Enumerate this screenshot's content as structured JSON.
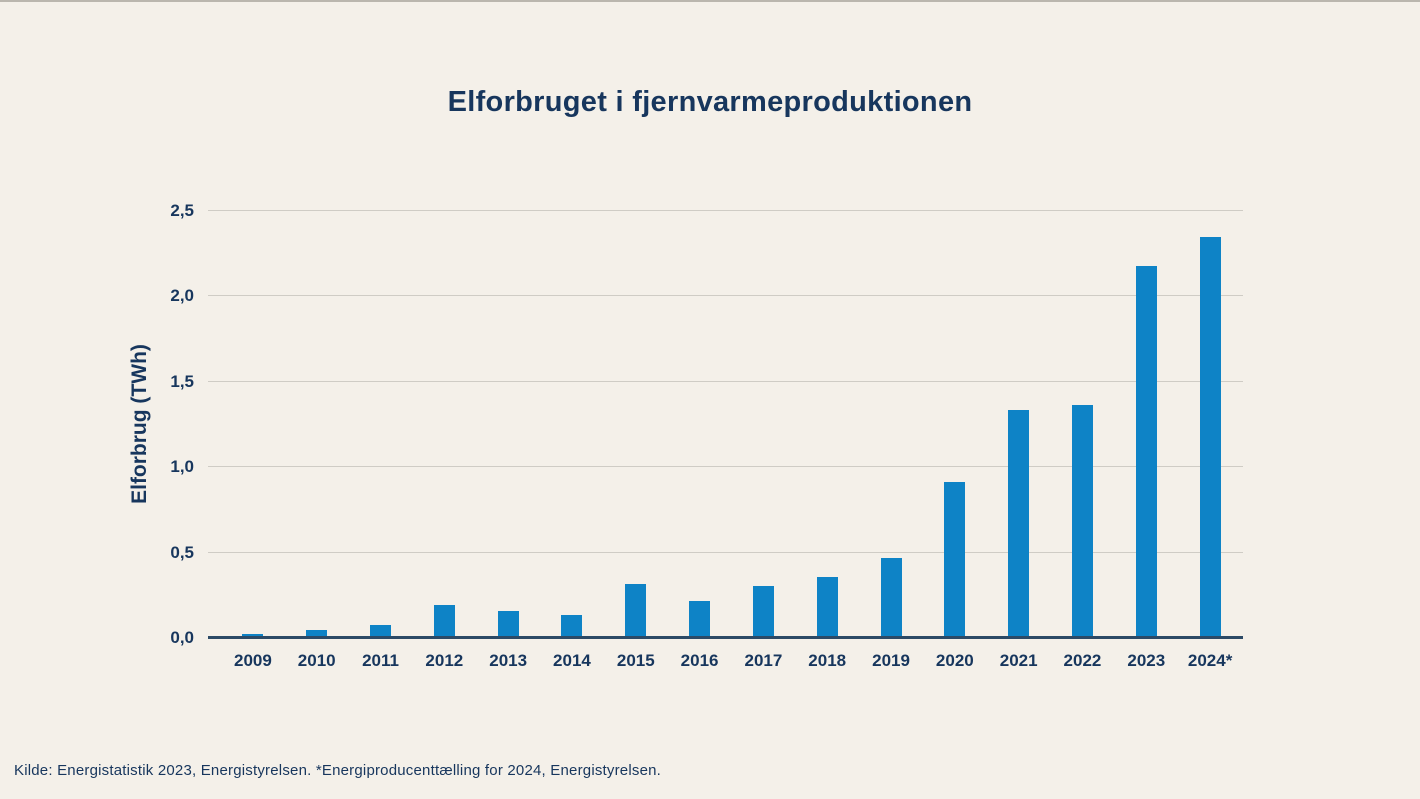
{
  "page": {
    "background_color": "#f4f0e9",
    "text_color": "#17365d",
    "bar_color": "#0e83c6",
    "gridline_color": "#cfccc5",
    "axis_line_color": "#2c4a66"
  },
  "chart_data": {
    "type": "bar",
    "title": "Elforbruget i fjernvarmeproduktionen",
    "xlabel": "",
    "ylabel": "Elforbrug (TWh)",
    "categories": [
      "2009",
      "2010",
      "2011",
      "2012",
      "2013",
      "2014",
      "2015",
      "2016",
      "2017",
      "2018",
      "2019",
      "2020",
      "2021",
      "2022",
      "2023",
      "2024*"
    ],
    "values": [
      0.02,
      0.04,
      0.07,
      0.19,
      0.15,
      0.13,
      0.31,
      0.21,
      0.3,
      0.35,
      0.46,
      0.91,
      1.33,
      1.36,
      2.17,
      2.34
    ],
    "ylim": [
      0,
      2.5
    ],
    "yticks": [
      {
        "value": 0.0,
        "label": "0,0"
      },
      {
        "value": 0.5,
        "label": "0,5"
      },
      {
        "value": 1.0,
        "label": "1,0"
      },
      {
        "value": 1.5,
        "label": "1,5"
      },
      {
        "value": 2.0,
        "label": "2,0"
      },
      {
        "value": 2.5,
        "label": "2,5"
      }
    ],
    "grid": "horizontal",
    "legend": "none",
    "bar_color": "#0e83c6"
  },
  "footer": {
    "source_text": "Kilde: Energistatistik 2023, Energistyrelsen. *Energiproducenttælling for 2024, Energistyrelsen."
  }
}
